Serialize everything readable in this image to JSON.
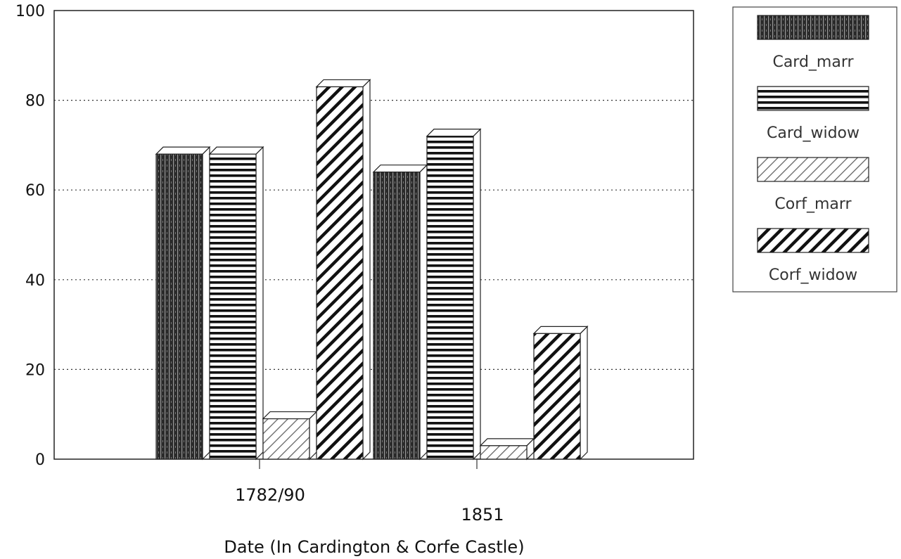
{
  "chart_data": {
    "type": "bar",
    "title": "",
    "xlabel": "Date (In Cardington & Corfe Castle)",
    "ylabel": "",
    "ylim": [
      0,
      100
    ],
    "yticks": [
      0,
      20,
      40,
      60,
      80,
      100
    ],
    "grid": true,
    "legend_position": "top-right",
    "categories": [
      "1782/90",
      "1851"
    ],
    "series": [
      {
        "name": "Card_marr",
        "values": [
          68,
          64
        ],
        "pattern": "dense-vertical",
        "color": "#222222"
      },
      {
        "name": "Card_widow",
        "values": [
          68,
          72
        ],
        "pattern": "horizontal",
        "color": "#111111"
      },
      {
        "name": "Corf_marr",
        "values": [
          9,
          3
        ],
        "pattern": "light-diagonal",
        "color": "#555555"
      },
      {
        "name": "Corf_widow",
        "values": [
          83,
          28
        ],
        "pattern": "heavy-diagonal",
        "color": "#111111"
      }
    ]
  }
}
